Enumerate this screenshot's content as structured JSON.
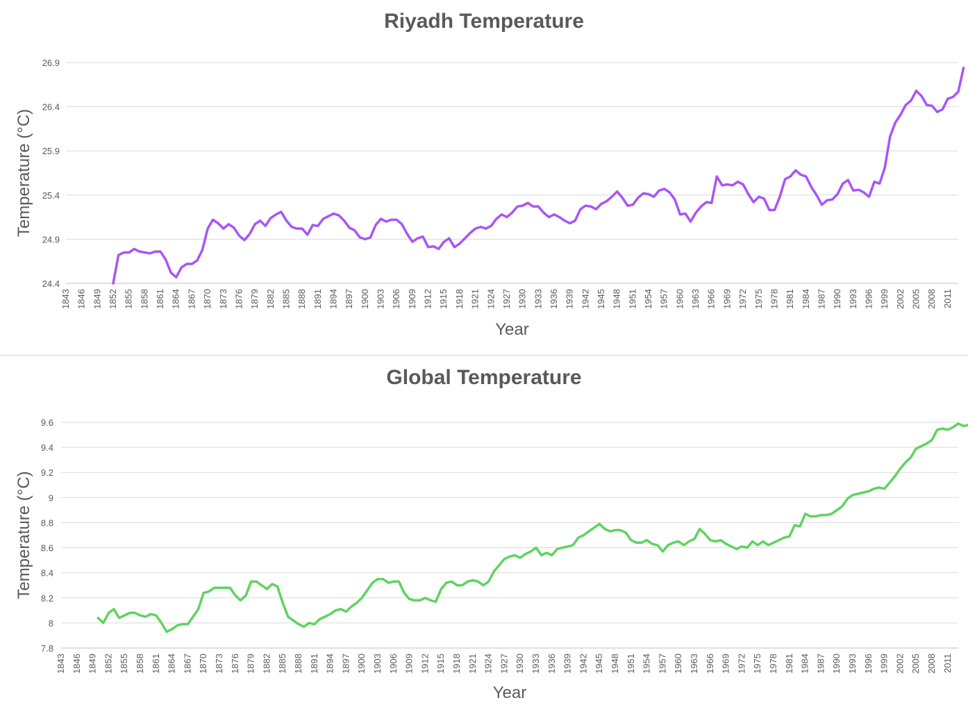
{
  "chart_data": [
    {
      "type": "line",
      "title": "Riyadh Temperature",
      "xlabel": "Year",
      "ylabel": "Temperature (°C)",
      "ylim": [
        24.4,
        26.9
      ],
      "yticks": [
        "24.4",
        "24.9",
        "25.4",
        "25.9",
        "26.4",
        "26.9"
      ],
      "xlim": [
        1843,
        2013
      ],
      "xticks": [
        1843,
        1846,
        1849,
        1852,
        1855,
        1858,
        1861,
        1864,
        1867,
        1870,
        1873,
        1876,
        1879,
        1882,
        1885,
        1888,
        1891,
        1894,
        1897,
        1900,
        1903,
        1906,
        1909,
        1912,
        1915,
        1918,
        1921,
        1924,
        1927,
        1930,
        1933,
        1936,
        1939,
        1942,
        1945,
        1948,
        1951,
        1954,
        1957,
        1960,
        1963,
        1966,
        1969,
        1972,
        1975,
        1978,
        1981,
        1984,
        1987,
        1990,
        1993,
        1996,
        1999,
        2002,
        2005,
        2008,
        2011
      ],
      "grid": true,
      "color": "#a855f7",
      "series": [
        {
          "x_start": 1852,
          "values": [
            24.4,
            24.72,
            24.75,
            24.75,
            24.79,
            24.76,
            24.75,
            24.74,
            24.76,
            24.76,
            24.67,
            24.52,
            24.47,
            24.58,
            24.62,
            24.62,
            24.66,
            24.78,
            25.02,
            25.12,
            25.08,
            25.02,
            25.07,
            25.03,
            24.94,
            24.89,
            24.96,
            25.07,
            25.11,
            25.05,
            25.14,
            25.18,
            25.21,
            25.11,
            25.04,
            25.02,
            25.02,
            24.95,
            25.06,
            25.05,
            25.13,
            25.16,
            25.19,
            25.17,
            25.11,
            25.03,
            25.0,
            24.92,
            24.9,
            24.92,
            25.06,
            25.13,
            25.1,
            25.12,
            25.12,
            25.07,
            24.96,
            24.87,
            24.91,
            24.93,
            24.81,
            24.82,
            24.79,
            24.87,
            24.91,
            24.81,
            24.85,
            24.91,
            24.97,
            25.02,
            25.04,
            25.02,
            25.05,
            25.13,
            25.18,
            25.15,
            25.2,
            25.27,
            25.28,
            25.31,
            25.27,
            25.27,
            25.2,
            25.15,
            25.18,
            25.15,
            25.11,
            25.08,
            25.11,
            25.24,
            25.28,
            25.27,
            25.24,
            25.3,
            25.33,
            25.38,
            25.44,
            25.37,
            25.28,
            25.29,
            25.37,
            25.42,
            25.41,
            25.38,
            25.45,
            25.47,
            25.43,
            25.35,
            25.18,
            25.19,
            25.1,
            25.2,
            25.27,
            25.32,
            25.31,
            25.61,
            25.51,
            25.52,
            25.51,
            25.55,
            25.52,
            25.41,
            25.32,
            25.38,
            25.36,
            25.23,
            25.23,
            25.38,
            25.58,
            25.61,
            25.68,
            25.63,
            25.61,
            25.49,
            25.4,
            25.29,
            25.34,
            25.35,
            25.41,
            25.53,
            25.57,
            25.45,
            25.46,
            25.43,
            25.38,
            25.55,
            25.53,
            25.71,
            26.06,
            26.22,
            26.31,
            26.42,
            26.47,
            26.58,
            26.52,
            26.42,
            26.41,
            26.34,
            26.37,
            26.49,
            26.51,
            26.57,
            26.84
          ]
        }
      ]
    },
    {
      "type": "line",
      "title": "Global Temperature",
      "xlabel": "Year",
      "ylabel": "Temperature (°C)",
      "ylim": [
        7.8,
        9.6
      ],
      "yticks": [
        "7.8",
        "8",
        "8.2",
        "8.4",
        "8.6",
        "8.8",
        "9",
        "9.2",
        "9.4",
        "9.6"
      ],
      "xlim": [
        1843,
        2013
      ],
      "xticks": [
        1843,
        1846,
        1849,
        1852,
        1855,
        1858,
        1861,
        1864,
        1867,
        1870,
        1873,
        1876,
        1879,
        1882,
        1885,
        1888,
        1891,
        1894,
        1897,
        1900,
        1903,
        1906,
        1909,
        1912,
        1915,
        1918,
        1921,
        1924,
        1927,
        1930,
        1933,
        1936,
        1939,
        1942,
        1945,
        1948,
        1951,
        1954,
        1957,
        1960,
        1963,
        1966,
        1969,
        1972,
        1975,
        1978,
        1981,
        1984,
        1987,
        1990,
        1993,
        1996,
        1999,
        2002,
        2005,
        2008,
        2011
      ],
      "grid": true,
      "color": "#5fd35f",
      "series": [
        {
          "x_start": 1850,
          "values": [
            8.04,
            8.0,
            8.08,
            8.11,
            8.04,
            8.06,
            8.08,
            8.08,
            8.06,
            8.05,
            8.07,
            8.06,
            8.0,
            7.93,
            7.95,
            7.98,
            7.99,
            7.99,
            8.05,
            8.11,
            8.24,
            8.25,
            8.28,
            8.28,
            8.28,
            8.28,
            8.22,
            8.18,
            8.22,
            8.33,
            8.33,
            8.3,
            8.27,
            8.31,
            8.29,
            8.16,
            8.05,
            8.02,
            7.99,
            7.97,
            8.0,
            7.99,
            8.03,
            8.05,
            8.07,
            8.1,
            8.11,
            8.09,
            8.13,
            8.16,
            8.2,
            8.26,
            8.32,
            8.35,
            8.35,
            8.32,
            8.33,
            8.33,
            8.24,
            8.19,
            8.18,
            8.18,
            8.2,
            8.18,
            8.17,
            8.27,
            8.32,
            8.33,
            8.3,
            8.3,
            8.33,
            8.34,
            8.33,
            8.3,
            8.33,
            8.41,
            8.46,
            8.51,
            8.53,
            8.54,
            8.52,
            8.55,
            8.57,
            8.6,
            8.54,
            8.56,
            8.54,
            8.59,
            8.6,
            8.61,
            8.62,
            8.68,
            8.7,
            8.73,
            8.76,
            8.79,
            8.75,
            8.73,
            8.74,
            8.74,
            8.72,
            8.66,
            8.64,
            8.64,
            8.66,
            8.63,
            8.62,
            8.57,
            8.62,
            8.64,
            8.65,
            8.62,
            8.65,
            8.67,
            8.75,
            8.71,
            8.66,
            8.65,
            8.66,
            8.63,
            8.61,
            8.59,
            8.61,
            8.6,
            8.65,
            8.62,
            8.65,
            8.62,
            8.64,
            8.66,
            8.68,
            8.69,
            8.78,
            8.77,
            8.87,
            8.85,
            8.85,
            8.86,
            8.86,
            8.87,
            8.9,
            8.93,
            8.99,
            9.02,
            9.03,
            9.04,
            9.05,
            9.07,
            9.08,
            9.07,
            9.12,
            9.17,
            9.23,
            9.28,
            9.32,
            9.39,
            9.41,
            9.43,
            9.46,
            9.54,
            9.55,
            9.54,
            9.56,
            9.59,
            9.57,
            9.58
          ]
        }
      ]
    }
  ]
}
